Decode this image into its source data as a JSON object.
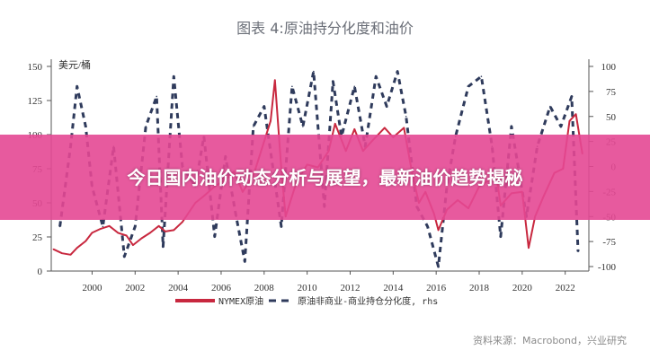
{
  "chart_data": {
    "type": "line",
    "title": "图表 4:原油持分化度和油价",
    "left_unit": "美元/桶",
    "source": "资料来源：Macrobond，兴业研究",
    "xlim": [
      1998.1,
      2023.1
    ],
    "x_ticks": [
      "2000",
      "2002",
      "2004",
      "2006",
      "2008",
      "2010",
      "2012",
      "2014",
      "2016",
      "2018",
      "2020",
      "2022"
    ],
    "ylim_left": [
      0,
      150
    ],
    "y_ticks_left": [
      "0",
      "25",
      "50",
      "75",
      "100",
      "125",
      "150"
    ],
    "ylim_right": [
      -100,
      100
    ],
    "y_ticks_right": [
      "-100",
      "-75",
      "-50",
      "-25",
      "0",
      "25",
      "50",
      "75",
      "100"
    ],
    "legend": {
      "position": "bottom",
      "items": [
        "NYMEX原油",
        "原油非商业-商业持仓分化度, rhs"
      ]
    },
    "series": [
      {
        "name": "NYMEX原油",
        "axis": "left",
        "color": "#c8283f",
        "style": "solid",
        "x": [
          1998.2,
          1998.6,
          1999.0,
          1999.3,
          1999.7,
          2000.0,
          2000.4,
          2000.8,
          2001.2,
          2001.6,
          2001.9,
          2002.3,
          2002.7,
          2003.1,
          2003.4,
          2003.8,
          2004.2,
          2004.8,
          2005.2,
          2005.7,
          2006.2,
          2006.6,
          2007.0,
          2007.5,
          2007.9,
          2008.3,
          2008.5,
          2008.8,
          2009.0,
          2009.5,
          2010.0,
          2010.5,
          2011.0,
          2011.3,
          2011.8,
          2012.2,
          2012.6,
          2013.0,
          2013.6,
          2014.0,
          2014.5,
          2014.9,
          2015.2,
          2015.5,
          2015.9,
          2016.1,
          2016.5,
          2017.0,
          2017.5,
          2018.0,
          2018.8,
          2019.0,
          2019.5,
          2020.0,
          2020.3,
          2020.6,
          2021.0,
          2021.5,
          2021.9,
          2022.2,
          2022.5,
          2022.8
        ],
        "y": [
          16,
          13,
          12,
          17,
          22,
          28,
          31,
          33,
          28,
          26,
          19,
          24,
          28,
          33,
          29,
          30,
          36,
          50,
          55,
          62,
          67,
          73,
          58,
          70,
          90,
          110,
          140,
          75,
          40,
          65,
          78,
          76,
          88,
          108,
          88,
          104,
          88,
          95,
          105,
          98,
          105,
          70,
          50,
          58,
          42,
          30,
          45,
          52,
          46,
          62,
          70,
          48,
          57,
          58,
          17,
          40,
          55,
          72,
          75,
          110,
          115,
          86
        ]
      },
      {
        "name": "原油非商业-商业持仓分化度, rhs",
        "axis": "right",
        "color": "#2f3b5c",
        "style": "dashed",
        "x": [
          1998.5,
          1999.0,
          1999.3,
          1999.7,
          2000.0,
          2000.5,
          2001.0,
          2001.5,
          2002.0,
          2002.5,
          2003.0,
          2003.3,
          2003.8,
          2004.2,
          2004.8,
          2005.2,
          2005.7,
          2006.2,
          2006.7,
          2007.1,
          2007.5,
          2008.0,
          2008.8,
          2009.3,
          2009.8,
          2010.3,
          2010.8,
          2011.2,
          2011.6,
          2012.2,
          2012.7,
          2013.2,
          2013.7,
          2014.2,
          2014.6,
          2015.1,
          2015.6,
          2016.1,
          2016.5,
          2016.9,
          2017.5,
          2018.1,
          2018.6,
          2019.0,
          2019.5,
          2020.2,
          2020.7,
          2021.3,
          2021.8,
          2022.3,
          2022.6
        ],
        "y": [
          -60,
          20,
          80,
          40,
          -20,
          -60,
          20,
          -90,
          -60,
          40,
          70,
          -80,
          90,
          0,
          -20,
          30,
          -70,
          10,
          -50,
          -95,
          40,
          60,
          -60,
          80,
          40,
          95,
          -40,
          85,
          30,
          80,
          20,
          90,
          60,
          95,
          50,
          -40,
          -60,
          -100,
          -20,
          30,
          80,
          90,
          20,
          -70,
          40,
          -50,
          20,
          60,
          40,
          70,
          -85
        ]
      }
    ]
  },
  "banner": {
    "text": "今日国内油价动态分析与展望，最新油价趋势揭秘"
  }
}
